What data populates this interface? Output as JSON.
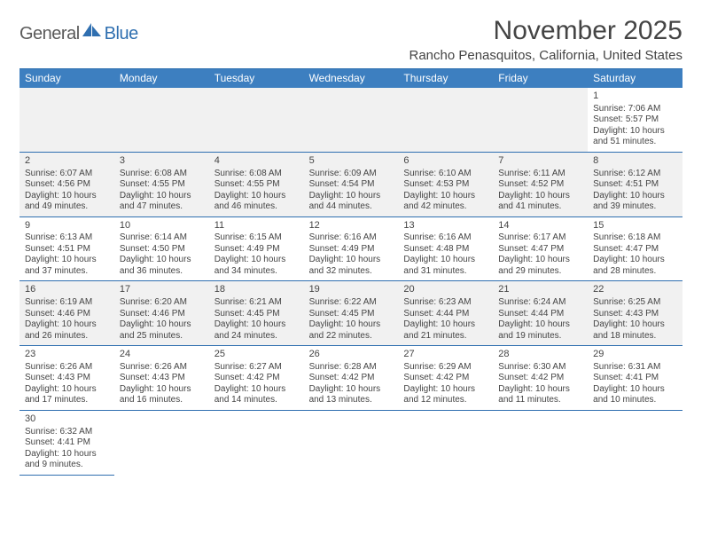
{
  "logo": {
    "part1": "General",
    "part2": "Blue"
  },
  "title": "November 2025",
  "location": "Rancho Penasquitos, California, United States",
  "colors": {
    "header_bg": "#3d7fc0",
    "header_text": "#ffffff",
    "rule": "#2f6fb0",
    "empty_bg": "#f1f1f1",
    "text": "#444444",
    "logo_gray": "#5a5a5a",
    "logo_blue": "#2f6fb0"
  },
  "day_labels": [
    "Sunday",
    "Monday",
    "Tuesday",
    "Wednesday",
    "Thursday",
    "Friday",
    "Saturday"
  ],
  "weeks": [
    [
      {
        "empty": true
      },
      {
        "empty": true
      },
      {
        "empty": true
      },
      {
        "empty": true
      },
      {
        "empty": true
      },
      {
        "empty": true
      },
      {
        "day": "1",
        "sunrise": "Sunrise: 7:06 AM",
        "sunset": "Sunset: 5:57 PM",
        "daylight1": "Daylight: 10 hours",
        "daylight2": "and 51 minutes."
      }
    ],
    [
      {
        "day": "2",
        "sunrise": "Sunrise: 6:07 AM",
        "sunset": "Sunset: 4:56 PM",
        "daylight1": "Daylight: 10 hours",
        "daylight2": "and 49 minutes.",
        "shade": true
      },
      {
        "day": "3",
        "sunrise": "Sunrise: 6:08 AM",
        "sunset": "Sunset: 4:55 PM",
        "daylight1": "Daylight: 10 hours",
        "daylight2": "and 47 minutes.",
        "shade": true
      },
      {
        "day": "4",
        "sunrise": "Sunrise: 6:08 AM",
        "sunset": "Sunset: 4:55 PM",
        "daylight1": "Daylight: 10 hours",
        "daylight2": "and 46 minutes.",
        "shade": true
      },
      {
        "day": "5",
        "sunrise": "Sunrise: 6:09 AM",
        "sunset": "Sunset: 4:54 PM",
        "daylight1": "Daylight: 10 hours",
        "daylight2": "and 44 minutes.",
        "shade": true
      },
      {
        "day": "6",
        "sunrise": "Sunrise: 6:10 AM",
        "sunset": "Sunset: 4:53 PM",
        "daylight1": "Daylight: 10 hours",
        "daylight2": "and 42 minutes.",
        "shade": true
      },
      {
        "day": "7",
        "sunrise": "Sunrise: 6:11 AM",
        "sunset": "Sunset: 4:52 PM",
        "daylight1": "Daylight: 10 hours",
        "daylight2": "and 41 minutes.",
        "shade": true
      },
      {
        "day": "8",
        "sunrise": "Sunrise: 6:12 AM",
        "sunset": "Sunset: 4:51 PM",
        "daylight1": "Daylight: 10 hours",
        "daylight2": "and 39 minutes.",
        "shade": true
      }
    ],
    [
      {
        "day": "9",
        "sunrise": "Sunrise: 6:13 AM",
        "sunset": "Sunset: 4:51 PM",
        "daylight1": "Daylight: 10 hours",
        "daylight2": "and 37 minutes."
      },
      {
        "day": "10",
        "sunrise": "Sunrise: 6:14 AM",
        "sunset": "Sunset: 4:50 PM",
        "daylight1": "Daylight: 10 hours",
        "daylight2": "and 36 minutes."
      },
      {
        "day": "11",
        "sunrise": "Sunrise: 6:15 AM",
        "sunset": "Sunset: 4:49 PM",
        "daylight1": "Daylight: 10 hours",
        "daylight2": "and 34 minutes."
      },
      {
        "day": "12",
        "sunrise": "Sunrise: 6:16 AM",
        "sunset": "Sunset: 4:49 PM",
        "daylight1": "Daylight: 10 hours",
        "daylight2": "and 32 minutes."
      },
      {
        "day": "13",
        "sunrise": "Sunrise: 6:16 AM",
        "sunset": "Sunset: 4:48 PM",
        "daylight1": "Daylight: 10 hours",
        "daylight2": "and 31 minutes."
      },
      {
        "day": "14",
        "sunrise": "Sunrise: 6:17 AM",
        "sunset": "Sunset: 4:47 PM",
        "daylight1": "Daylight: 10 hours",
        "daylight2": "and 29 minutes."
      },
      {
        "day": "15",
        "sunrise": "Sunrise: 6:18 AM",
        "sunset": "Sunset: 4:47 PM",
        "daylight1": "Daylight: 10 hours",
        "daylight2": "and 28 minutes."
      }
    ],
    [
      {
        "day": "16",
        "sunrise": "Sunrise: 6:19 AM",
        "sunset": "Sunset: 4:46 PM",
        "daylight1": "Daylight: 10 hours",
        "daylight2": "and 26 minutes.",
        "shade": true
      },
      {
        "day": "17",
        "sunrise": "Sunrise: 6:20 AM",
        "sunset": "Sunset: 4:46 PM",
        "daylight1": "Daylight: 10 hours",
        "daylight2": "and 25 minutes.",
        "shade": true
      },
      {
        "day": "18",
        "sunrise": "Sunrise: 6:21 AM",
        "sunset": "Sunset: 4:45 PM",
        "daylight1": "Daylight: 10 hours",
        "daylight2": "and 24 minutes.",
        "shade": true
      },
      {
        "day": "19",
        "sunrise": "Sunrise: 6:22 AM",
        "sunset": "Sunset: 4:45 PM",
        "daylight1": "Daylight: 10 hours",
        "daylight2": "and 22 minutes.",
        "shade": true
      },
      {
        "day": "20",
        "sunrise": "Sunrise: 6:23 AM",
        "sunset": "Sunset: 4:44 PM",
        "daylight1": "Daylight: 10 hours",
        "daylight2": "and 21 minutes.",
        "shade": true
      },
      {
        "day": "21",
        "sunrise": "Sunrise: 6:24 AM",
        "sunset": "Sunset: 4:44 PM",
        "daylight1": "Daylight: 10 hours",
        "daylight2": "and 19 minutes.",
        "shade": true
      },
      {
        "day": "22",
        "sunrise": "Sunrise: 6:25 AM",
        "sunset": "Sunset: 4:43 PM",
        "daylight1": "Daylight: 10 hours",
        "daylight2": "and 18 minutes.",
        "shade": true
      }
    ],
    [
      {
        "day": "23",
        "sunrise": "Sunrise: 6:26 AM",
        "sunset": "Sunset: 4:43 PM",
        "daylight1": "Daylight: 10 hours",
        "daylight2": "and 17 minutes."
      },
      {
        "day": "24",
        "sunrise": "Sunrise: 6:26 AM",
        "sunset": "Sunset: 4:43 PM",
        "daylight1": "Daylight: 10 hours",
        "daylight2": "and 16 minutes."
      },
      {
        "day": "25",
        "sunrise": "Sunrise: 6:27 AM",
        "sunset": "Sunset: 4:42 PM",
        "daylight1": "Daylight: 10 hours",
        "daylight2": "and 14 minutes."
      },
      {
        "day": "26",
        "sunrise": "Sunrise: 6:28 AM",
        "sunset": "Sunset: 4:42 PM",
        "daylight1": "Daylight: 10 hours",
        "daylight2": "and 13 minutes."
      },
      {
        "day": "27",
        "sunrise": "Sunrise: 6:29 AM",
        "sunset": "Sunset: 4:42 PM",
        "daylight1": "Daylight: 10 hours",
        "daylight2": "and 12 minutes."
      },
      {
        "day": "28",
        "sunrise": "Sunrise: 6:30 AM",
        "sunset": "Sunset: 4:42 PM",
        "daylight1": "Daylight: 10 hours",
        "daylight2": "and 11 minutes."
      },
      {
        "day": "29",
        "sunrise": "Sunrise: 6:31 AM",
        "sunset": "Sunset: 4:41 PM",
        "daylight1": "Daylight: 10 hours",
        "daylight2": "and 10 minutes."
      }
    ],
    [
      {
        "day": "30",
        "sunrise": "Sunrise: 6:32 AM",
        "sunset": "Sunset: 4:41 PM",
        "daylight1": "Daylight: 10 hours",
        "daylight2": "and 9 minutes."
      },
      {
        "empty": true,
        "noborder": true
      },
      {
        "empty": true,
        "noborder": true
      },
      {
        "empty": true,
        "noborder": true
      },
      {
        "empty": true,
        "noborder": true
      },
      {
        "empty": true,
        "noborder": true
      },
      {
        "empty": true,
        "noborder": true
      }
    ]
  ]
}
